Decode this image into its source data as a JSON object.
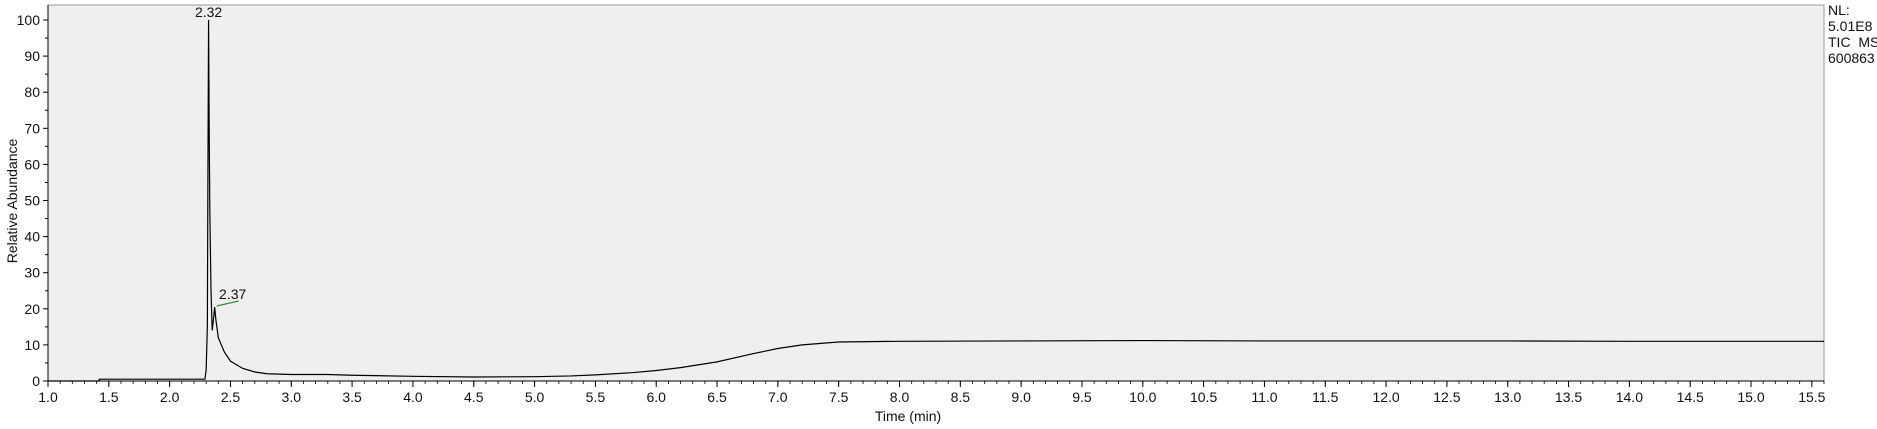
{
  "chart_data": {
    "type": "line",
    "xlabel": "Time (min)",
    "ylabel": "Relative Abundance",
    "xlim": [
      1.0,
      15.6
    ],
    "ylim": [
      0,
      100
    ],
    "x_ticks": [
      "1.0",
      "1.5",
      "2.0",
      "2.5",
      "3.0",
      "3.5",
      "4.0",
      "4.5",
      "5.0",
      "5.5",
      "6.0",
      "6.5",
      "7.0",
      "7.5",
      "8.0",
      "8.5",
      "9.0",
      "9.5",
      "10.0",
      "10.5",
      "11.0",
      "11.5",
      "12.0",
      "12.5",
      "13.0",
      "13.5",
      "14.0",
      "14.5",
      "15.0",
      "15.5"
    ],
    "y_ticks": [
      "0",
      "10",
      "20",
      "30",
      "40",
      "50",
      "60",
      "70",
      "80",
      "90",
      "100"
    ],
    "info": [
      "NL:",
      "5.01E8",
      "TIC  MS",
      "600863"
    ],
    "annotations": [
      {
        "text": "2.32",
        "x": 2.32,
        "y": 100
      },
      {
        "text": "2.37",
        "x": 2.37,
        "y": 20.5
      }
    ],
    "series": [
      {
        "color": "#000000",
        "x": [
          1.0,
          1.42,
          1.421,
          2.29,
          2.3,
          2.31,
          2.315,
          2.32,
          2.325,
          2.33,
          2.34,
          2.35,
          2.36,
          2.37,
          2.38,
          2.4,
          2.45,
          2.5,
          2.6,
          2.7,
          2.8,
          3.0,
          3.3,
          3.5,
          4.0,
          4.5,
          5.0,
          5.3,
          5.5,
          5.8,
          6.0,
          6.2,
          6.5,
          6.8,
          7.0,
          7.2,
          7.5,
          8.0,
          9.0,
          10.0,
          11.0,
          12.0,
          13.0,
          14.0,
          15.0,
          15.6
        ],
        "y": [
          0,
          0,
          0.5,
          0.5,
          3,
          15,
          60,
          100,
          70,
          48,
          25,
          14,
          17,
          20.5,
          17,
          12,
          8,
          5.5,
          3.5,
          2.5,
          2,
          1.8,
          1.8,
          1.6,
          1.3,
          1.1,
          1.2,
          1.4,
          1.7,
          2.3,
          2.9,
          3.7,
          5.3,
          7.6,
          9.0,
          10.0,
          10.8,
          11.0,
          11.1,
          11.2,
          11.1,
          11.1,
          11.1,
          11.0,
          11.0,
          11.0
        ]
      }
    ]
  }
}
